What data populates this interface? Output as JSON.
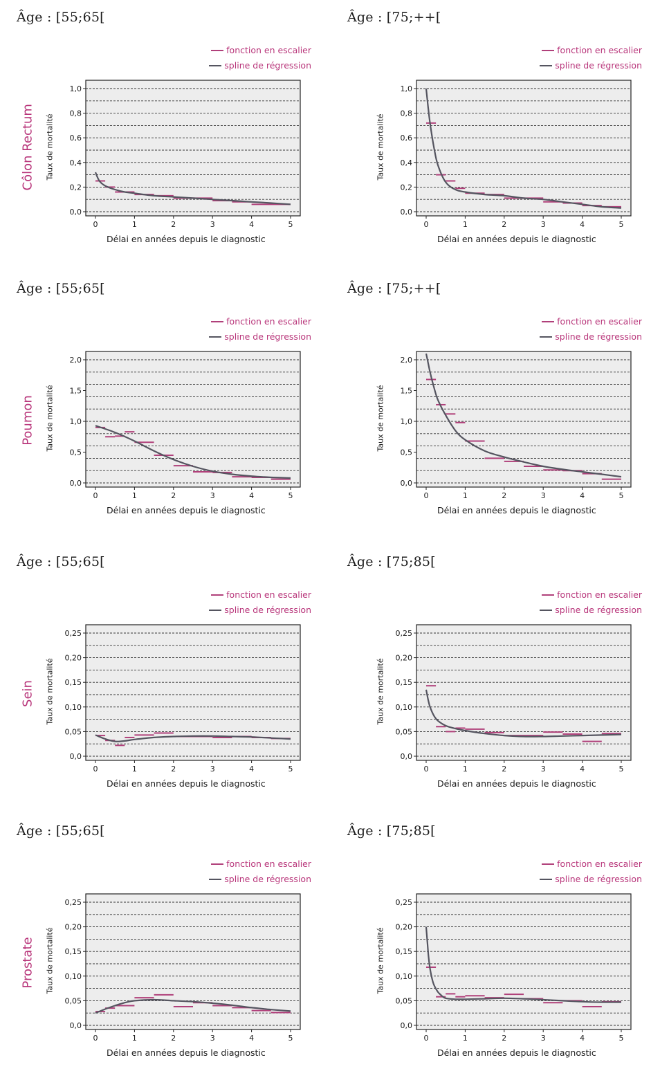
{
  "legend": {
    "step": "fonction en escalier",
    "spline": "spline de régression"
  },
  "colors": {
    "step": "#b0407a",
    "spline": "#555560",
    "label": "#b8357a",
    "grid_bg": "#ededed"
  },
  "ylabel": "Taux de mortalité",
  "xlabel": "Délai en années depuis le diagnostic",
  "cancers": [
    "Côlon Rectum",
    "Poumon",
    "Sein",
    "Prostate"
  ],
  "chart_data": [
    {
      "type": "line",
      "cancer": "Côlon Rectum",
      "age": "Âge : [55;65[",
      "xlim": [
        0,
        5
      ],
      "ylim": [
        0,
        1.0
      ],
      "xticks": [
        "0",
        "1",
        "2",
        "3",
        "4",
        "5"
      ],
      "yticks": [
        "0,0",
        "0,2",
        "0,4",
        "0,6",
        "0,8",
        "1,0"
      ],
      "ytick_values": [
        0,
        0.2,
        0.4,
        0.6,
        0.8,
        1.0
      ],
      "series": [
        {
          "name": "fonction en escalier",
          "segments": [
            [
              0,
              0.25,
              0.25
            ],
            [
              0.25,
              0.5,
              0.2
            ],
            [
              0.5,
              1.0,
              0.16
            ],
            [
              1.0,
              1.5,
              0.14
            ],
            [
              1.5,
              2.0,
              0.13
            ],
            [
              2.0,
              3.0,
              0.11
            ],
            [
              3.0,
              3.5,
              0.09
            ],
            [
              3.5,
              4.0,
              0.08
            ],
            [
              4.0,
              5.0,
              0.06
            ]
          ]
        },
        {
          "name": "spline de régression",
          "x": [
            0,
            0.1,
            0.25,
            0.5,
            0.75,
            1,
            1.5,
            2,
            2.5,
            3,
            3.5,
            4,
            4.5,
            5
          ],
          "y": [
            0.32,
            0.25,
            0.21,
            0.18,
            0.16,
            0.15,
            0.13,
            0.12,
            0.11,
            0.1,
            0.09,
            0.08,
            0.07,
            0.06
          ]
        }
      ]
    },
    {
      "type": "line",
      "cancer": "Côlon Rectum",
      "age": "Âge : [75;++[",
      "xlim": [
        0,
        5
      ],
      "ylim": [
        0,
        1.0
      ],
      "xticks": [
        "0",
        "1",
        "2",
        "3",
        "4",
        "5"
      ],
      "yticks": [
        "0,0",
        "0,2",
        "0,4",
        "0,6",
        "0,8",
        "1,0"
      ],
      "ytick_values": [
        0,
        0.2,
        0.4,
        0.6,
        0.8,
        1.0
      ],
      "series": [
        {
          "name": "fonction en escalier",
          "segments": [
            [
              0,
              0.25,
              0.72
            ],
            [
              0.25,
              0.5,
              0.3
            ],
            [
              0.5,
              0.75,
              0.25
            ],
            [
              0.75,
              1.0,
              0.19
            ],
            [
              1.0,
              1.5,
              0.15
            ],
            [
              1.5,
              2.0,
              0.14
            ],
            [
              2.0,
              3.0,
              0.11
            ],
            [
              3.0,
              3.5,
              0.08
            ],
            [
              3.5,
              4.0,
              0.07
            ],
            [
              4.0,
              4.5,
              0.05
            ],
            [
              4.5,
              5.0,
              0.04
            ]
          ]
        },
        {
          "name": "spline de régression",
          "x": [
            0,
            0.05,
            0.1,
            0.2,
            0.3,
            0.5,
            0.75,
            1,
            1.5,
            2,
            2.5,
            3,
            3.5,
            4,
            4.5,
            5
          ],
          "y": [
            1.0,
            0.85,
            0.72,
            0.52,
            0.38,
            0.24,
            0.18,
            0.16,
            0.14,
            0.13,
            0.11,
            0.1,
            0.08,
            0.06,
            0.04,
            0.03
          ]
        }
      ]
    },
    {
      "type": "line",
      "cancer": "Poumon",
      "age": "Âge : [55;65[",
      "xlim": [
        0,
        5
      ],
      "ylim": [
        0,
        2.0
      ],
      "xticks": [
        "0",
        "1",
        "2",
        "3",
        "4",
        "5"
      ],
      "yticks": [
        "0,0",
        "0,5",
        "1,0",
        "1,5",
        "2,0"
      ],
      "ytick_values": [
        0,
        0.5,
        1.0,
        1.5,
        2.0
      ],
      "series": [
        {
          "name": "fonction en escalier",
          "segments": [
            [
              0,
              0.25,
              0.9
            ],
            [
              0.25,
              0.5,
              0.75
            ],
            [
              0.5,
              0.75,
              0.76
            ],
            [
              0.75,
              1.0,
              0.83
            ],
            [
              1.0,
              1.5,
              0.66
            ],
            [
              1.5,
              2.0,
              0.45
            ],
            [
              2.0,
              2.5,
              0.28
            ],
            [
              2.5,
              3.0,
              0.18
            ],
            [
              3.0,
              3.5,
              0.17
            ],
            [
              3.5,
              4.0,
              0.1
            ],
            [
              4.0,
              4.5,
              0.09
            ],
            [
              4.5,
              5.0,
              0.06
            ]
          ]
        },
        {
          "name": "spline de régression",
          "x": [
            0,
            0.5,
            1,
            1.5,
            2,
            2.5,
            3,
            3.5,
            4,
            4.5,
            5
          ],
          "y": [
            0.93,
            0.82,
            0.68,
            0.52,
            0.38,
            0.27,
            0.19,
            0.14,
            0.11,
            0.09,
            0.08
          ]
        }
      ]
    },
    {
      "type": "line",
      "cancer": "Poumon",
      "age": "Âge : [75;++[",
      "xlim": [
        0,
        5
      ],
      "ylim": [
        0,
        2.0
      ],
      "xticks": [
        "0",
        "1",
        "2",
        "3",
        "4",
        "5"
      ],
      "yticks": [
        "0,0",
        "0,5",
        "1,0",
        "1,5",
        "2,0"
      ],
      "ytick_values": [
        0,
        0.5,
        1.0,
        1.5,
        2.0
      ],
      "series": [
        {
          "name": "fonction en escalier",
          "segments": [
            [
              0,
              0.25,
              1.68
            ],
            [
              0.25,
              0.5,
              1.27
            ],
            [
              0.5,
              0.75,
              1.12
            ],
            [
              0.75,
              1.0,
              0.98
            ],
            [
              1.0,
              1.5,
              0.68
            ],
            [
              1.5,
              2.0,
              0.4
            ],
            [
              2.0,
              2.5,
              0.35
            ],
            [
              2.5,
              3.0,
              0.27
            ],
            [
              3.0,
              3.5,
              0.21
            ],
            [
              3.5,
              4.0,
              0.2
            ],
            [
              4.0,
              4.5,
              0.15
            ],
            [
              4.5,
              5.0,
              0.06
            ]
          ]
        },
        {
          "name": "spline de régression",
          "x": [
            0,
            0.05,
            0.1,
            0.2,
            0.3,
            0.5,
            0.75,
            1,
            1.5,
            2,
            2.5,
            3,
            3.5,
            4,
            4.5,
            5
          ],
          "y": [
            2.1,
            1.95,
            1.8,
            1.55,
            1.35,
            1.1,
            0.85,
            0.7,
            0.52,
            0.42,
            0.34,
            0.27,
            0.22,
            0.18,
            0.14,
            0.1
          ]
        }
      ]
    },
    {
      "type": "line",
      "cancer": "Sein",
      "age": "Âge : [55;65[",
      "xlim": [
        0,
        5
      ],
      "ylim": [
        0,
        0.25
      ],
      "xticks": [
        "0",
        "1",
        "2",
        "3",
        "4",
        "5"
      ],
      "yticks": [
        "0,0",
        "0,05",
        "0,10",
        "0,15",
        "0,20",
        "0,25"
      ],
      "ytick_values": [
        0,
        0.05,
        0.1,
        0.15,
        0.2,
        0.25
      ],
      "series": [
        {
          "name": "fonction en escalier",
          "segments": [
            [
              0,
              0.25,
              0.042
            ],
            [
              0.25,
              0.5,
              0.032
            ],
            [
              0.5,
              0.75,
              0.022
            ],
            [
              0.75,
              1.0,
              0.038
            ],
            [
              1.0,
              1.5,
              0.043
            ],
            [
              1.5,
              2.0,
              0.047
            ],
            [
              2.0,
              3.0,
              0.04
            ],
            [
              3.0,
              3.5,
              0.038
            ],
            [
              3.5,
              4.0,
              0.04
            ],
            [
              4.0,
              4.5,
              0.038
            ],
            [
              4.5,
              5.0,
              0.036
            ]
          ]
        },
        {
          "name": "spline de régression",
          "x": [
            0,
            0.25,
            0.5,
            0.75,
            1,
            1.5,
            2,
            2.5,
            3,
            3.5,
            4,
            4.5,
            5
          ],
          "y": [
            0.043,
            0.035,
            0.03,
            0.031,
            0.034,
            0.038,
            0.04,
            0.041,
            0.041,
            0.04,
            0.039,
            0.037,
            0.035
          ]
        }
      ]
    },
    {
      "type": "line",
      "cancer": "Sein",
      "age": "Âge : [75;85[",
      "xlim": [
        0,
        5
      ],
      "ylim": [
        0,
        0.25
      ],
      "xticks": [
        "0",
        "1",
        "2",
        "3",
        "4",
        "5"
      ],
      "yticks": [
        "0,0",
        "0,05",
        "0,10",
        "0,15",
        "0,20",
        "0,25"
      ],
      "ytick_values": [
        0,
        0.05,
        0.1,
        0.15,
        0.2,
        0.25
      ],
      "series": [
        {
          "name": "fonction en escalier",
          "segments": [
            [
              0,
              0.25,
              0.143
            ],
            [
              0.25,
              0.5,
              0.06
            ],
            [
              0.5,
              0.75,
              0.05
            ],
            [
              0.75,
              1.0,
              0.057
            ],
            [
              1.0,
              1.5,
              0.055
            ],
            [
              1.5,
              2.0,
              0.048
            ],
            [
              2.0,
              3.0,
              0.042
            ],
            [
              3.0,
              3.5,
              0.049
            ],
            [
              3.5,
              4.0,
              0.045
            ],
            [
              4.0,
              4.5,
              0.03
            ],
            [
              4.5,
              5.0,
              0.046
            ]
          ]
        },
        {
          "name": "spline de régression",
          "x": [
            0,
            0.05,
            0.1,
            0.2,
            0.3,
            0.5,
            0.75,
            1,
            1.5,
            2,
            2.5,
            3,
            3.5,
            4,
            4.5,
            5
          ],
          "y": [
            0.135,
            0.115,
            0.1,
            0.082,
            0.072,
            0.062,
            0.056,
            0.052,
            0.046,
            0.042,
            0.04,
            0.04,
            0.041,
            0.042,
            0.043,
            0.044
          ]
        }
      ]
    },
    {
      "type": "line",
      "cancer": "Prostate",
      "age": "Âge : [55;65[",
      "xlim": [
        0,
        5
      ],
      "ylim": [
        0,
        0.25
      ],
      "xticks": [
        "0",
        "1",
        "2",
        "3",
        "4",
        "5"
      ],
      "yticks": [
        "0,0",
        "0,05",
        "0,10",
        "0,15",
        "0,20",
        "0,25"
      ],
      "ytick_values": [
        0,
        0.05,
        0.1,
        0.15,
        0.2,
        0.25
      ],
      "series": [
        {
          "name": "fonction en escalier",
          "segments": [
            [
              0,
              0.25,
              0.028
            ],
            [
              0.25,
              0.5,
              0.035
            ],
            [
              0.5,
              1.0,
              0.04
            ],
            [
              1.0,
              1.5,
              0.056
            ],
            [
              1.5,
              2.0,
              0.062
            ],
            [
              2.0,
              2.5,
              0.038
            ],
            [
              2.5,
              3.0,
              0.046
            ],
            [
              3.0,
              3.5,
              0.04
            ],
            [
              3.5,
              4.0,
              0.036
            ],
            [
              4.0,
              4.5,
              0.03
            ],
            [
              4.5,
              5.0,
              0.026
            ]
          ]
        },
        {
          "name": "spline de régression",
          "x": [
            0,
            0.25,
            0.5,
            0.75,
            1,
            1.5,
            2,
            2.5,
            3,
            3.5,
            4,
            4.5,
            5
          ],
          "y": [
            0.025,
            0.033,
            0.04,
            0.046,
            0.05,
            0.052,
            0.05,
            0.048,
            0.045,
            0.041,
            0.036,
            0.032,
            0.029
          ]
        }
      ]
    },
    {
      "type": "line",
      "cancer": "Prostate",
      "age": "Âge : [75;85[",
      "xlim": [
        0,
        5
      ],
      "ylim": [
        0,
        0.25
      ],
      "xticks": [
        "0",
        "1",
        "2",
        "3",
        "4",
        "5"
      ],
      "yticks": [
        "0,0",
        "0,05",
        "0,10",
        "0,15",
        "0,20",
        "0,25"
      ],
      "ytick_values": [
        0,
        0.05,
        0.1,
        0.15,
        0.2,
        0.25
      ],
      "series": [
        {
          "name": "fonction en escalier",
          "segments": [
            [
              0,
              0.25,
              0.118
            ],
            [
              0.25,
              0.5,
              0.058
            ],
            [
              0.5,
              0.75,
              0.064
            ],
            [
              0.75,
              1.0,
              0.058
            ],
            [
              1.0,
              1.5,
              0.06
            ],
            [
              1.5,
              2.0,
              0.056
            ],
            [
              2.0,
              2.5,
              0.063
            ],
            [
              2.5,
              3.0,
              0.054
            ],
            [
              3.0,
              3.5,
              0.046
            ],
            [
              3.5,
              4.0,
              0.05
            ],
            [
              4.0,
              4.5,
              0.038
            ],
            [
              4.5,
              5.0,
              0.048
            ]
          ]
        },
        {
          "name": "spline de régression",
          "x": [
            0,
            0.03,
            0.06,
            0.1,
            0.15,
            0.2,
            0.3,
            0.4,
            0.5,
            0.75,
            1,
            1.5,
            2,
            2.5,
            3,
            3.5,
            4,
            4.5,
            5
          ],
          "y": [
            0.2,
            0.17,
            0.14,
            0.115,
            0.095,
            0.082,
            0.068,
            0.06,
            0.055,
            0.053,
            0.053,
            0.054,
            0.055,
            0.054,
            0.052,
            0.05,
            0.048,
            0.047,
            0.047
          ]
        }
      ]
    }
  ]
}
